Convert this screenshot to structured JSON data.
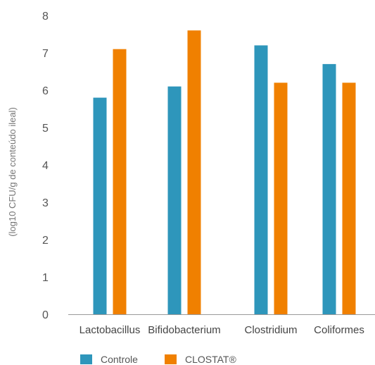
{
  "chart_data": {
    "type": "bar",
    "ylabel": "(log10 CFU/g de conteúdo ileal)",
    "ylim": [
      0,
      8
    ],
    "y_ticks": [
      "0",
      "1",
      "2",
      "3",
      "4",
      "5",
      "6",
      "7",
      "8"
    ],
    "categories": [
      "Lactobacillus",
      "Bifidobacterium",
      "Clostridium",
      "Coliformes"
    ],
    "series": [
      {
        "name": "Controle",
        "color": "#2e96bb",
        "values": [
          5.8,
          6.1,
          7.2,
          6.7
        ]
      },
      {
        "name": "CLOSTAT®",
        "color": "#f08000",
        "values": [
          7.1,
          7.6,
          6.2,
          6.2
        ]
      }
    ],
    "grid": false,
    "legend_position": "bottom-left"
  }
}
